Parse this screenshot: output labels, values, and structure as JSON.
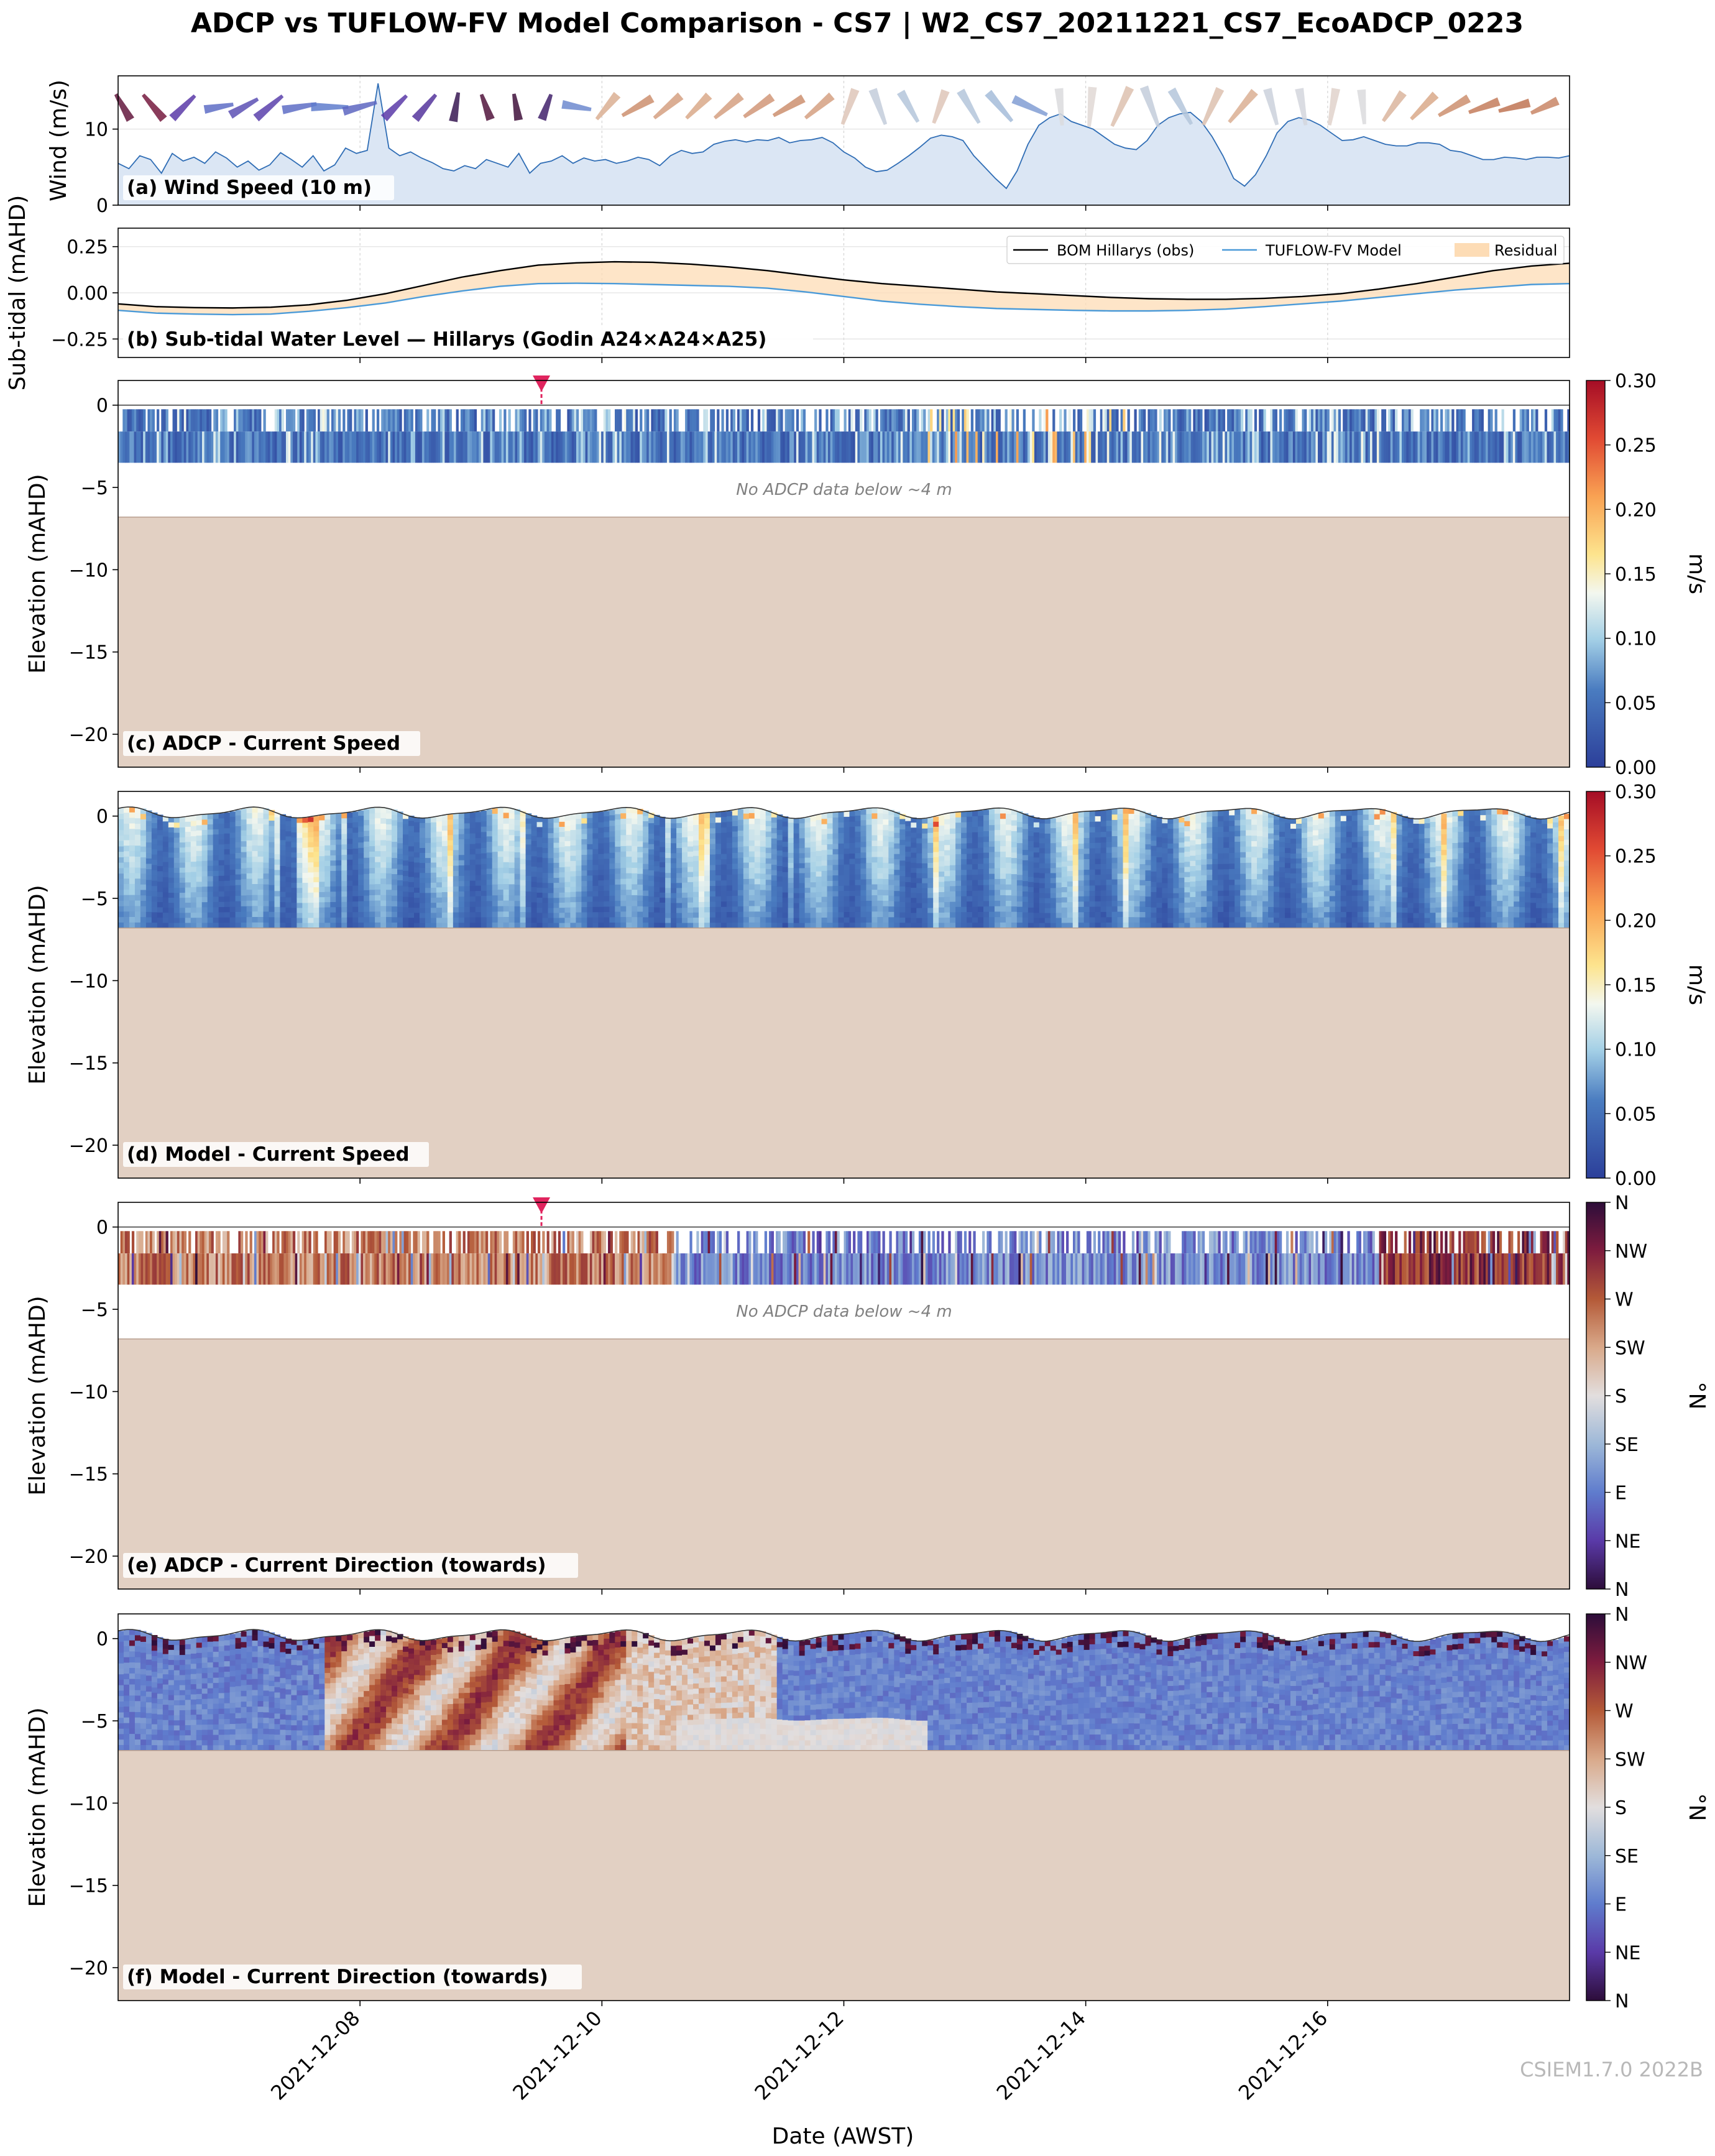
{
  "title": "ADCP vs TUFLOW-FV Model Comparison - CS7 | W2_CS7_20211221_CS7_EcoADCP_0223",
  "xlabel": "Date (AWST)",
  "x_ticks": [
    "2021-12-08",
    "2021-12-10",
    "2021-12-12",
    "2021-12-14",
    "2021-12-16"
  ],
  "watermark": "CSIEM1.7.0 2022B",
  "chart_data": [
    {
      "type": "area",
      "label": "(a) Wind Speed (10 m)",
      "ylabel": "Wind (m/s)",
      "y_ticks": [
        "0",
        "10"
      ],
      "ylim": [
        0,
        17
      ],
      "x_range": [
        "2021-12-06T00:00",
        "2021-12-18T00:00"
      ],
      "wind_speed": [
        5.5,
        4.8,
        6.5,
        6.0,
        4.2,
        6.8,
        5.8,
        6.3,
        5.5,
        7.0,
        6.2,
        5.0,
        5.8,
        4.6,
        5.3,
        6.9,
        6.0,
        5.0,
        6.5,
        4.5,
        5.3,
        7.5,
        6.8,
        7.2,
        16.0,
        7.5,
        6.5,
        7.0,
        6.2,
        5.6,
        4.8,
        4.5,
        5.2,
        4.8,
        6.0,
        5.5,
        5.0,
        6.8,
        4.2,
        5.5,
        5.8,
        6.5,
        5.5,
        6.2,
        5.8,
        6.0,
        5.5,
        5.8,
        6.3,
        6.0,
        5.2,
        6.5,
        7.2,
        6.8,
        7.0,
        8.0,
        8.4,
        8.6,
        8.3,
        8.6,
        8.5,
        8.9,
        8.2,
        8.5,
        8.6,
        8.9,
        8.2,
        7.0,
        6.2,
        5.0,
        4.4,
        4.6,
        5.5,
        6.5,
        7.6,
        8.8,
        9.2,
        9.0,
        8.5,
        6.5,
        5.0,
        3.5,
        2.2,
        4.5,
        8.0,
        10.5,
        11.5,
        12.0,
        11.0,
        10.5,
        10.0,
        9.0,
        8.0,
        7.5,
        7.3,
        8.5,
        10.5,
        11.5,
        12.0,
        12.2,
        11.0,
        9.0,
        6.5,
        3.5,
        2.5,
        4.0,
        6.5,
        9.5,
        11.0,
        11.5,
        11.2,
        10.5,
        9.5,
        8.5,
        8.6,
        9.0,
        8.5,
        8.0,
        7.8,
        7.8,
        8.2,
        8.2,
        8.0,
        7.2,
        7.0,
        6.5,
        6.0,
        6.0,
        6.3,
        6.2,
        6.0,
        6.3,
        6.3,
        6.2,
        6.5
      ],
      "wind_arrows": [
        {
          "hour": 1,
          "speed": 6,
          "dir": 330
        },
        {
          "hour": 7,
          "speed": 7,
          "dir": 320
        },
        {
          "hour": 13,
          "speed": 7,
          "dir": 45
        },
        {
          "hour": 20,
          "speed": 6,
          "dir": 80
        },
        {
          "hour": 25,
          "speed": 7,
          "dir": 60
        },
        {
          "hour": 30,
          "speed": 8,
          "dir": 50
        },
        {
          "hour": 36,
          "speed": 8,
          "dir": 80
        },
        {
          "hour": 42,
          "speed": 9,
          "dir": 90
        },
        {
          "hour": 48,
          "speed": 8,
          "dir": 75
        },
        {
          "hour": 55,
          "speed": 7,
          "dir": 45
        },
        {
          "hour": 61,
          "speed": 7,
          "dir": 40
        },
        {
          "hour": 67,
          "speed": 6,
          "dir": 10
        },
        {
          "hour": 73,
          "speed": 5,
          "dir": 340
        },
        {
          "hour": 79,
          "speed": 5,
          "dir": 350
        },
        {
          "hour": 85,
          "speed": 5,
          "dir": 20
        },
        {
          "hour": 91,
          "speed": 6,
          "dir": 100
        },
        {
          "hour": 97,
          "speed": 7,
          "dir": 220
        },
        {
          "hour": 103,
          "speed": 8,
          "dir": 240
        },
        {
          "hour": 109,
          "speed": 8,
          "dir": 230
        },
        {
          "hour": 115,
          "speed": 7,
          "dir": 225
        },
        {
          "hour": 121,
          "speed": 8,
          "dir": 230
        },
        {
          "hour": 127,
          "speed": 8,
          "dir": 235
        },
        {
          "hour": 133,
          "speed": 8,
          "dir": 240
        },
        {
          "hour": 139,
          "speed": 8,
          "dir": 230
        },
        {
          "hour": 145,
          "speed": 9,
          "dir": 200
        },
        {
          "hour": 151,
          "speed": 9,
          "dir": 160
        },
        {
          "hour": 157,
          "speed": 8,
          "dir": 150
        },
        {
          "hour": 163,
          "speed": 8,
          "dir": 200
        },
        {
          "hour": 169,
          "speed": 9,
          "dir": 150
        },
        {
          "hour": 175,
          "speed": 9,
          "dir": 140
        },
        {
          "hour": 181,
          "speed": 9,
          "dir": 115
        },
        {
          "hour": 187,
          "speed": 9,
          "dir": 175
        },
        {
          "hour": 193,
          "speed": 10,
          "dir": 185
        },
        {
          "hour": 199,
          "speed": 11,
          "dir": 205
        },
        {
          "hour": 205,
          "speed": 11,
          "dir": 160
        },
        {
          "hour": 211,
          "speed": 10,
          "dir": 150
        },
        {
          "hour": 217,
          "speed": 10,
          "dir": 205
        },
        {
          "hour": 223,
          "speed": 10,
          "dir": 220
        },
        {
          "hour": 229,
          "speed": 9,
          "dir": 165
        },
        {
          "hour": 235,
          "speed": 9,
          "dir": 170
        },
        {
          "hour": 241,
          "speed": 9,
          "dir": 190
        },
        {
          "hour": 247,
          "speed": 8,
          "dir": 175
        },
        {
          "hour": 253,
          "speed": 8,
          "dir": 215
        },
        {
          "hour": 259,
          "speed": 8,
          "dir": 225
        },
        {
          "hour": 265,
          "speed": 8,
          "dir": 240
        },
        {
          "hour": 271,
          "speed": 7,
          "dir": 250
        },
        {
          "hour": 277,
          "speed": 7,
          "dir": 255
        },
        {
          "hour": 283,
          "speed": 6,
          "dir": 245
        }
      ]
    },
    {
      "type": "line",
      "label": "(b) Sub-tidal Water Level — Hillarys (Godin A24×A24×A25)",
      "ylabel": "Sub-tidal (mAHD)",
      "y_ticks": [
        "−0.25",
        "0.00",
        "0.25"
      ],
      "ylim": [
        -0.35,
        0.35
      ],
      "series": [
        {
          "name": "BOM Hillarys (obs)",
          "color": "#000000",
          "values": [
            -0.06,
            -0.075,
            -0.08,
            -0.082,
            -0.078,
            -0.065,
            -0.04,
            -0.005,
            0.04,
            0.085,
            0.12,
            0.15,
            0.162,
            0.168,
            0.165,
            0.155,
            0.14,
            0.12,
            0.095,
            0.07,
            0.05,
            0.035,
            0.02,
            0.005,
            -0.005,
            -0.015,
            -0.025,
            -0.032,
            -0.035,
            -0.035,
            -0.03,
            -0.02,
            -0.005,
            0.02,
            0.05,
            0.085,
            0.12,
            0.145,
            0.16
          ]
        },
        {
          "name": "TUFLOW-FV Model",
          "color": "#4a9ad8",
          "values": [
            -0.095,
            -0.11,
            -0.115,
            -0.118,
            -0.115,
            -0.1,
            -0.08,
            -0.055,
            -0.02,
            0.01,
            0.035,
            0.05,
            0.052,
            0.05,
            0.045,
            0.04,
            0.035,
            0.025,
            0.005,
            -0.02,
            -0.045,
            -0.062,
            -0.075,
            -0.085,
            -0.09,
            -0.095,
            -0.098,
            -0.098,
            -0.095,
            -0.088,
            -0.075,
            -0.06,
            -0.045,
            -0.025,
            -0.005,
            0.015,
            0.03,
            0.045,
            0.05
          ]
        },
        {
          "name": "Residual",
          "color": "#fddcb5",
          "kind": "fill_between"
        }
      ]
    },
    {
      "type": "heatmap",
      "label": "(c) ADCP - Current Speed",
      "ylabel": "Elevation (mAHD)",
      "y_ticks": [
        "0",
        "−5",
        "−10",
        "−15",
        "−20"
      ],
      "ylim": [
        -22,
        1.5
      ],
      "bins_elevation": [
        -1.1,
        -2.3,
        -3.5
      ],
      "annotation": "No ADCP data below ~4 m",
      "colorbar": {
        "label": "m/s",
        "min": 0,
        "max": 0.3,
        "ticks": [
          "0.00",
          "0.05",
          "0.10",
          "0.15",
          "0.20",
          "0.25",
          "0.30"
        ]
      },
      "seabed_elevation": -6.8
    },
    {
      "type": "heatmap",
      "label": "(d) Model - Current Speed",
      "ylabel": "Elevation (mAHD)",
      "y_ticks": [
        "0",
        "−5",
        "−10",
        "−15",
        "−20"
      ],
      "ylim": [
        -22,
        1.5
      ],
      "colorbar": {
        "label": "m/s",
        "min": 0,
        "max": 0.3,
        "ticks": [
          "0.00",
          "0.05",
          "0.10",
          "0.15",
          "0.20",
          "0.25",
          "0.30"
        ]
      },
      "seabed_elevation": -6.8
    },
    {
      "type": "heatmap",
      "label": "(e) ADCP - Current Direction (towards)",
      "ylabel": "Elevation (mAHD)",
      "y_ticks": [
        "0",
        "−5",
        "−10",
        "−15",
        "−20"
      ],
      "ylim": [
        -22,
        1.5
      ],
      "annotation": "No ADCP data below ~4 m",
      "colorbar": {
        "label": "°N",
        "ticks": [
          "N",
          "NE",
          "E",
          "SE",
          "S",
          "SW",
          "W",
          "NW",
          "N"
        ]
      },
      "seabed_elevation": -6.8
    },
    {
      "type": "heatmap",
      "label": "(f) Model - Current Direction (towards)",
      "ylabel": "Elevation (mAHD)",
      "y_ticks": [
        "0",
        "−5",
        "−10",
        "−15",
        "−20"
      ],
      "ylim": [
        -22,
        1.5
      ],
      "colorbar": {
        "label": "°N",
        "ticks": [
          "N",
          "NE",
          "E",
          "SE",
          "S",
          "SW",
          "W",
          "NW",
          "N"
        ]
      },
      "seabed_elevation": -6.8
    }
  ]
}
